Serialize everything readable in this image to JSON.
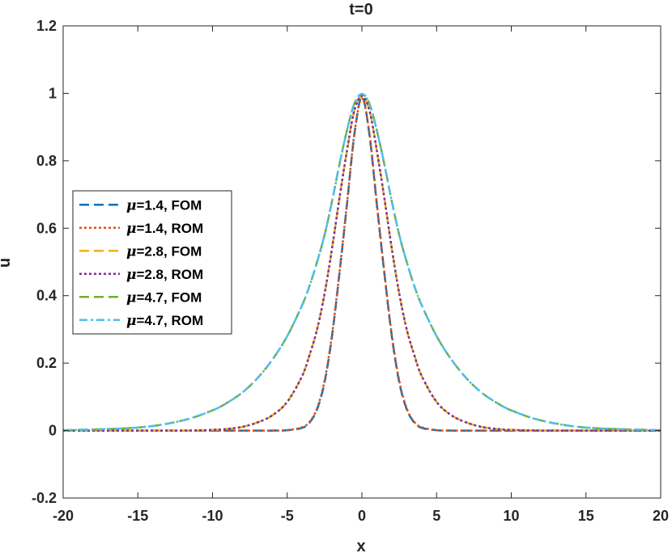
{
  "chart_data": {
    "type": "line",
    "title": "t=0",
    "xlabel": "x",
    "ylabel": "u",
    "xlim": [
      -20,
      20
    ],
    "ylim": [
      -0.2,
      1.2
    ],
    "xticks": [
      -20,
      -15,
      -10,
      -5,
      0,
      5,
      10,
      15,
      20
    ],
    "xtick_labels": [
      "-20",
      "-15",
      "-10",
      "-5",
      "0",
      "5",
      "10",
      "15",
      "20"
    ],
    "yticks": [
      -0.2,
      0,
      0.2,
      0.4,
      0.6,
      0.8,
      1,
      1.2
    ],
    "ytick_labels": [
      "-0.2",
      "0",
      "0.2",
      "0.4",
      "0.6",
      "0.8",
      "1",
      "1.2"
    ],
    "grid": false,
    "legend_position": "left",
    "x": [
      -20,
      -15,
      -12,
      -10,
      -9,
      -8,
      -7,
      -6,
      -5,
      -4,
      -3.5,
      -3,
      -2.5,
      -2,
      -1.5,
      -1,
      -0.5,
      0,
      0.5,
      1,
      1.5,
      2,
      2.5,
      3,
      3.5,
      4,
      5,
      6,
      7,
      8,
      9,
      10,
      12,
      15,
      20
    ],
    "series": [
      {
        "name": "=1.4, FOM",
        "mu": "μ",
        "color": "#0072BD",
        "dash": "dashed",
        "values": [
          0,
          0,
          0,
          0,
          0,
          0,
          0,
          0,
          0.001,
          0.008,
          0.024,
          0.063,
          0.143,
          0.28,
          0.467,
          0.67,
          0.879,
          0.99,
          0.879,
          0.67,
          0.467,
          0.28,
          0.143,
          0.063,
          0.024,
          0.008,
          0.001,
          0,
          0,
          0,
          0,
          0,
          0,
          0,
          0
        ]
      },
      {
        "name": "=1.4, ROM",
        "mu": "μ",
        "color": "#D95319",
        "dash": "dotted",
        "values": [
          0,
          0,
          0,
          0,
          0,
          0,
          0,
          0,
          0.001,
          0.01,
          0.026,
          0.066,
          0.148,
          0.285,
          0.471,
          0.674,
          0.882,
          0.985,
          0.882,
          0.674,
          0.471,
          0.285,
          0.148,
          0.066,
          0.026,
          0.01,
          0.001,
          0,
          0,
          0,
          0,
          0,
          0,
          0,
          0
        ]
      },
      {
        "name": "=2.8, FOM",
        "mu": "μ",
        "color": "#EDB120",
        "dash": "dashed",
        "values": [
          0,
          0,
          0,
          0.002,
          0.005,
          0.011,
          0.024,
          0.045,
          0.085,
          0.162,
          0.225,
          0.3,
          0.406,
          0.54,
          0.69,
          0.83,
          0.95,
          0.992,
          0.95,
          0.83,
          0.69,
          0.54,
          0.406,
          0.3,
          0.225,
          0.162,
          0.085,
          0.045,
          0.024,
          0.011,
          0.005,
          0.002,
          0,
          0,
          0
        ]
      },
      {
        "name": "=2.8, ROM",
        "mu": "μ",
        "color": "#7E2F8E",
        "dash": "dotted",
        "values": [
          0,
          0,
          0,
          0.002,
          0.005,
          0.011,
          0.024,
          0.045,
          0.085,
          0.162,
          0.225,
          0.3,
          0.406,
          0.54,
          0.69,
          0.83,
          0.95,
          0.992,
          0.95,
          0.83,
          0.69,
          0.54,
          0.406,
          0.3,
          0.225,
          0.162,
          0.085,
          0.045,
          0.024,
          0.011,
          0.005,
          0.002,
          0,
          0,
          0
        ]
      },
      {
        "name": "=4.7, FOM",
        "mu": "μ",
        "color": "#77AC30",
        "dash": "dashed",
        "values": [
          0.001,
          0.009,
          0.03,
          0.06,
          0.083,
          0.113,
          0.155,
          0.21,
          0.28,
          0.372,
          0.43,
          0.5,
          0.58,
          0.68,
          0.79,
          0.89,
          0.97,
          0.998,
          0.97,
          0.89,
          0.79,
          0.68,
          0.58,
          0.5,
          0.43,
          0.372,
          0.28,
          0.21,
          0.155,
          0.113,
          0.083,
          0.06,
          0.03,
          0.009,
          0.001
        ]
      },
      {
        "name": "=4.7, ROM",
        "mu": "μ",
        "color": "#4DBEEE",
        "dash": "dashdot",
        "values": [
          0.001,
          0.009,
          0.03,
          0.06,
          0.083,
          0.113,
          0.155,
          0.21,
          0.28,
          0.372,
          0.43,
          0.5,
          0.58,
          0.68,
          0.79,
          0.89,
          0.97,
          0.998,
          0.97,
          0.89,
          0.79,
          0.68,
          0.58,
          0.5,
          0.43,
          0.372,
          0.28,
          0.21,
          0.155,
          0.113,
          0.083,
          0.06,
          0.03,
          0.009,
          0.001
        ]
      }
    ]
  }
}
